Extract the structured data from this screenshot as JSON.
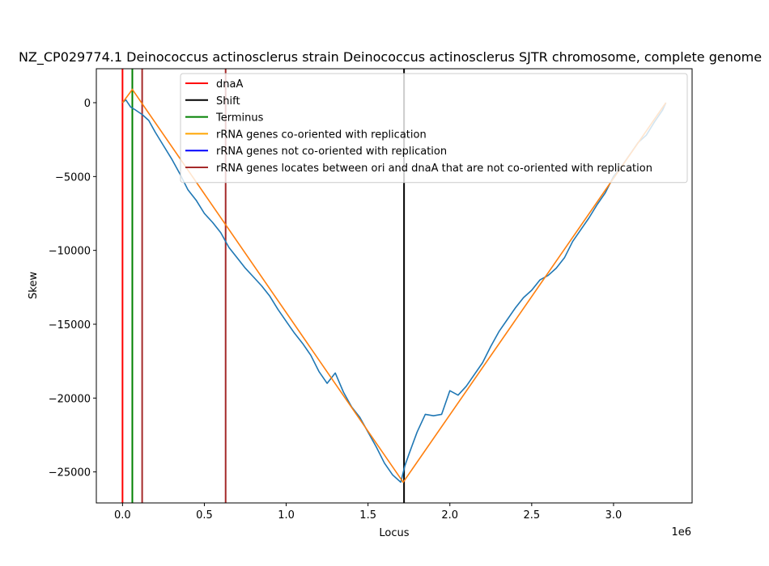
{
  "chart_data": {
    "type": "line",
    "title": "NZ_CP029774.1 Deinococcus actinosclerus strain Deinococcus actinosclerus SJTR chromosome, complete genome",
    "xlabel": "Locus",
    "ylabel": "Skew",
    "x_offset_label": "1e6",
    "xlim": [
      -160000,
      3480000
    ],
    "ylim": [
      -27100,
      2300
    ],
    "x_ticks": [
      0,
      500000,
      1000000,
      1500000,
      2000000,
      2500000,
      3000000
    ],
    "x_tick_labels": [
      "0.0",
      "0.5",
      "1.0",
      "1.5",
      "2.0",
      "2.5",
      "3.0"
    ],
    "y_ticks": [
      0,
      -5000,
      -10000,
      -15000,
      -20000,
      -25000
    ],
    "y_tick_labels": [
      "0",
      "−5000",
      "−10000",
      "−15000",
      "−20000",
      "−25000"
    ],
    "grid": false,
    "legend_position": "top-right",
    "skew_series": {
      "color": "#1f77b4",
      "x": [
        0,
        20000,
        50000,
        80000,
        120000,
        160000,
        200000,
        250000,
        300000,
        350000,
        400000,
        450000,
        500000,
        550000,
        600000,
        650000,
        700000,
        750000,
        800000,
        850000,
        900000,
        950000,
        1000000,
        1050000,
        1100000,
        1150000,
        1200000,
        1250000,
        1300000,
        1350000,
        1400000,
        1450000,
        1500000,
        1550000,
        1600000,
        1650000,
        1700000,
        1725000,
        1750000,
        1800000,
        1850000,
        1900000,
        1950000,
        2000000,
        2050000,
        2100000,
        2150000,
        2200000,
        2250000,
        2300000,
        2350000,
        2400000,
        2450000,
        2500000,
        2550000,
        2600000,
        2650000,
        2700000,
        2750000,
        2800000,
        2850000,
        2900000,
        2950000,
        3000000,
        3050000,
        3100000,
        3150000,
        3200000,
        3250000,
        3300000,
        3320000
      ],
      "y": [
        0,
        200,
        -300,
        -500,
        -800,
        -1200,
        -2000,
        -2900,
        -3800,
        -4800,
        -5900,
        -6600,
        -7500,
        -8100,
        -8800,
        -9800,
        -10500,
        -11200,
        -11800,
        -12400,
        -13100,
        -14000,
        -14800,
        -15600,
        -16300,
        -17100,
        -18200,
        -19000,
        -18300,
        -19600,
        -20600,
        -21300,
        -22300,
        -23300,
        -24400,
        -25200,
        -25700,
        -24600,
        -23800,
        -22300,
        -21100,
        -21200,
        -21100,
        -19500,
        -19800,
        -19200,
        -18400,
        -17600,
        -16500,
        -15500,
        -14700,
        -13900,
        -13200,
        -12700,
        -12000,
        -11700,
        -11200,
        -10500,
        -9400,
        -8600,
        -7800,
        -6900,
        -6100,
        -5000,
        -4300,
        -3500,
        -2700,
        -2200,
        -1300,
        -500,
        0
      ]
    },
    "fit_series": {
      "color": "#ff7f0e",
      "x": [
        0,
        60000,
        1715000,
        3320000
      ],
      "y": [
        0,
        900,
        -25700,
        0
      ]
    },
    "vertical_lines": [
      {
        "label": "dnaA",
        "x": 0,
        "color": "#ff0000"
      },
      {
        "label": "Terminus",
        "x": 60000,
        "color": "#008000"
      },
      {
        "label": "rRNA genes locates between ori and dnaA that are not co-oriented with replication",
        "x": 120000,
        "color": "#a52a2a"
      },
      {
        "label": "rRNA genes locates between ori and dnaA that are not co-oriented with replication",
        "x": 630000,
        "color": "#a52a2a"
      },
      {
        "label": "Shift",
        "x": 1720000,
        "color": "#000000"
      }
    ],
    "legend": [
      {
        "label": "dnaA",
        "color": "#ff0000"
      },
      {
        "label": "Shift",
        "color": "#000000"
      },
      {
        "label": "Terminus",
        "color": "#008000"
      },
      {
        "label": "rRNA genes co-oriented with replication",
        "color": "#ffa500"
      },
      {
        "label": "rRNA genes not co-oriented with replication",
        "color": "#0000ff"
      },
      {
        "label": "rRNA genes locates between ori and dnaA that are not co-oriented with replication",
        "color": "#a52a2a"
      }
    ]
  }
}
